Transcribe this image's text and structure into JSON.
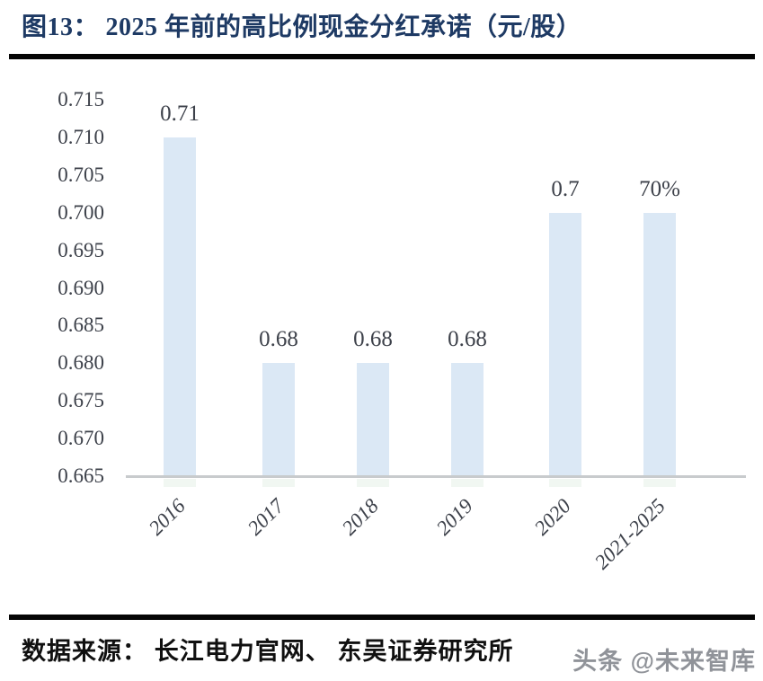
{
  "header": {
    "title": "图13：  2025 年前的高比例现金分红承诺（元/股）"
  },
  "chart_data": {
    "type": "bar",
    "title": "2025 年前的高比例现金分红承诺（元/股）",
    "categories": [
      "2016",
      "2017",
      "2018",
      "2019",
      "2020",
      "2021-2025"
    ],
    "values": [
      0.71,
      0.68,
      0.68,
      0.68,
      0.7,
      0.7
    ],
    "bar_labels": [
      "0.71",
      "0.68",
      "0.68",
      "0.68",
      "0.7",
      "70%"
    ],
    "xlabel": "",
    "ylabel": "",
    "ylim": [
      0.665,
      0.715
    ],
    "ytick_step": 0.005,
    "yticks": [
      "0.715",
      "0.710",
      "0.705",
      "0.700",
      "0.695",
      "0.690",
      "0.685",
      "0.680",
      "0.675",
      "0.670",
      "0.665"
    ],
    "grid": false,
    "legend_position": "none",
    "bar_color": "#dbe8f5",
    "axis_color": "#c8cbcd",
    "text_color": "#3d414a"
  },
  "footer": {
    "source": "数据来源：  长江电力官网、  东吴证券研究所",
    "watermark": "头条 @未来智库"
  }
}
